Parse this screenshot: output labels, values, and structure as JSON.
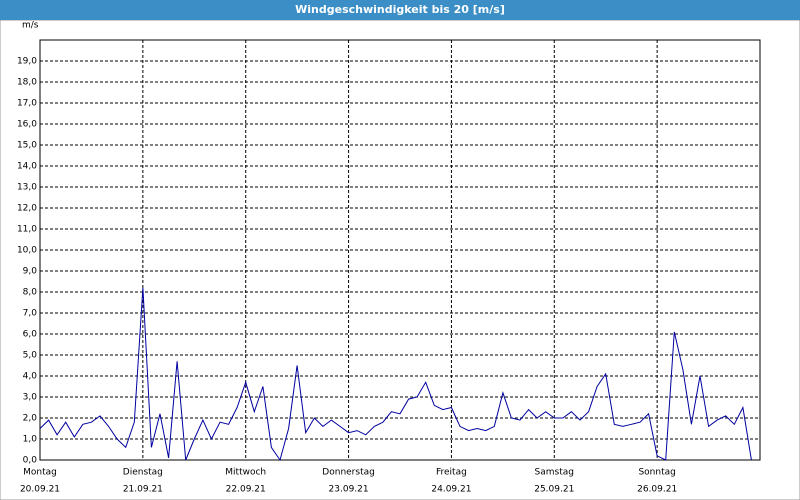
{
  "chart_data": {
    "type": "line",
    "title": "Windgeschwindigkeit bis 20 [m/s]",
    "y_label": "m/s",
    "days": [
      {
        "name": "Montag",
        "date": "20.09.21"
      },
      {
        "name": "Dienstag",
        "date": "21.09.21"
      },
      {
        "name": "Mittwoch",
        "date": "22.09.21"
      },
      {
        "name": "Donnerstag",
        "date": "23.09.21"
      },
      {
        "name": "Freitag",
        "date": "24.09.21"
      },
      {
        "name": "Samstag",
        "date": "25.09.21"
      },
      {
        "name": "Sonntag",
        "date": "26.09.21"
      }
    ],
    "color": "#0000a0",
    "values": [
      1.5,
      1.9,
      1.2,
      1.8,
      1.1,
      1.7,
      1.8,
      2.1,
      1.6,
      1.0,
      0.6,
      1.8,
      8.2,
      0.6,
      2.2,
      0.1,
      4.7,
      0.0,
      1.0,
      1.9,
      1.0,
      1.8,
      1.7,
      2.5,
      3.7,
      2.3,
      3.5,
      0.6,
      0.0,
      1.5,
      4.5,
      1.3,
      2.0,
      1.6,
      1.9,
      1.6,
      1.3,
      1.4,
      1.2,
      1.6,
      1.8,
      2.3,
      2.2,
      2.9,
      3.0,
      3.7,
      2.6,
      2.4,
      2.5,
      1.6,
      1.4,
      1.5,
      1.4,
      1.6,
      3.2,
      2.0,
      1.9,
      2.4,
      2.0,
      2.3,
      2.0,
      2.0,
      2.3,
      1.9,
      2.3,
      3.5,
      4.1,
      1.7,
      1.6,
      1.7,
      1.8,
      2.2,
      0.2,
      0.0,
      6.1,
      4.3,
      1.7,
      4.0,
      1.6,
      1.9,
      2.1,
      1.7,
      2.5,
      0.0
    ],
    "ylim": [
      0,
      20
    ],
    "yticks": [
      {
        "value": 0,
        "label": "0,0"
      },
      {
        "value": 1,
        "label": "1,0"
      },
      {
        "value": 2,
        "label": "2,0"
      },
      {
        "value": 3,
        "label": "3,0"
      },
      {
        "value": 4,
        "label": "4,0"
      },
      {
        "value": 5,
        "label": "5,0"
      },
      {
        "value": 6,
        "label": "6,0"
      },
      {
        "value": 7,
        "label": "7,0"
      },
      {
        "value": 8,
        "label": "8,0"
      },
      {
        "value": 9,
        "label": "9,0"
      },
      {
        "value": 10,
        "label": "10,0"
      },
      {
        "value": 11,
        "label": "11,0"
      },
      {
        "value": 12,
        "label": "12,0"
      },
      {
        "value": 13,
        "label": "13,0"
      },
      {
        "value": 14,
        "label": "14,0"
      },
      {
        "value": 15,
        "label": "15,0"
      },
      {
        "value": 16,
        "label": "16,0"
      },
      {
        "value": 17,
        "label": "17,0"
      },
      {
        "value": 18,
        "label": "18,0"
      },
      {
        "value": 19,
        "label": "19,0"
      }
    ],
    "grid": true
  }
}
